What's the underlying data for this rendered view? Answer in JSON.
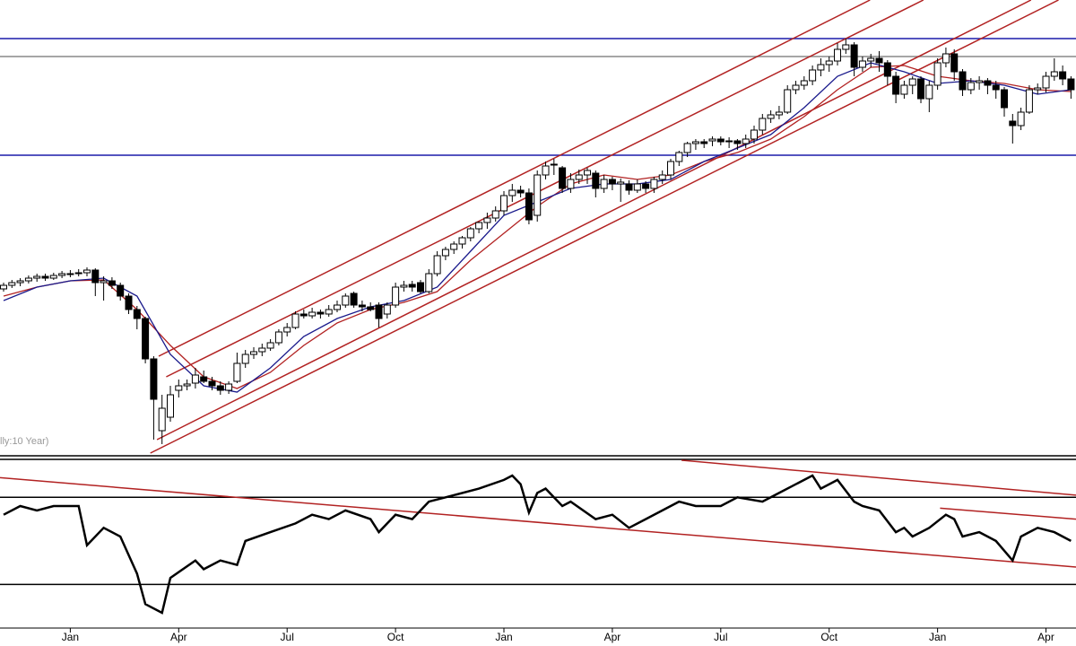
{
  "chart_data": [
    {
      "type": "candlestick",
      "annotation": "lly:10 Year)",
      "xlim": [
        -0.43,
        128.6
      ],
      "ylim": [
        0,
        505
      ],
      "up_color": "#ffffff",
      "down_color": "#000000",
      "trend_color": "#b22222",
      "ohlc": [
        [
          183,
          190,
          180,
          187
        ],
        [
          187,
          193,
          184,
          190
        ],
        [
          190,
          195,
          186,
          192
        ],
        [
          192,
          198,
          189,
          195
        ],
        [
          195,
          200,
          191,
          197
        ],
        [
          197,
          200,
          192,
          195
        ],
        [
          195,
          201,
          193,
          198
        ],
        [
          198,
          203,
          195,
          200
        ],
        [
          200,
          204,
          196,
          200
        ],
        [
          200,
          205,
          197,
          201
        ],
        [
          201,
          207,
          197,
          204
        ],
        [
          204,
          206,
          175,
          190
        ],
        [
          190,
          197,
          170,
          192
        ],
        [
          192,
          196,
          183,
          187
        ],
        [
          187,
          190,
          170,
          175
        ],
        [
          175,
          178,
          155,
          160
        ],
        [
          160,
          164,
          138,
          150
        ],
        [
          150,
          152,
          100,
          105
        ],
        [
          105,
          108,
          15,
          60
        ],
        [
          25,
          65,
          10,
          50
        ],
        [
          40,
          75,
          35,
          65
        ],
        [
          70,
          82,
          62,
          75
        ],
        [
          75,
          82,
          70,
          77
        ],
        [
          78,
          95,
          72,
          87
        ],
        [
          85,
          92,
          78,
          80
        ],
        [
          80,
          85,
          70,
          75
        ],
        [
          75,
          80,
          65,
          70
        ],
        [
          70,
          80,
          66,
          77
        ],
        [
          80,
          112,
          78,
          100
        ],
        [
          100,
          115,
          95,
          110
        ],
        [
          110,
          118,
          105,
          113
        ],
        [
          113,
          122,
          108,
          117
        ],
        [
          117,
          127,
          114,
          123
        ],
        [
          123,
          138,
          120,
          135
        ],
        [
          135,
          145,
          130,
          140
        ],
        [
          140,
          158,
          138,
          155
        ],
        [
          155,
          160,
          150,
          153
        ],
        [
          153,
          162,
          150,
          157
        ],
        [
          157,
          160,
          150,
          155
        ],
        [
          155,
          165,
          152,
          160
        ],
        [
          160,
          170,
          157,
          165
        ],
        [
          165,
          178,
          162,
          175
        ],
        [
          178,
          180,
          162,
          165
        ],
        [
          165,
          170,
          158,
          163
        ],
        [
          163,
          168,
          158,
          160
        ],
        [
          165,
          168,
          140,
          150
        ],
        [
          155,
          168,
          150,
          165
        ],
        [
          165,
          190,
          162,
          185
        ],
        [
          185,
          192,
          180,
          187
        ],
        [
          188,
          192,
          180,
          185
        ],
        [
          190,
          193,
          178,
          180
        ],
        [
          180,
          205,
          178,
          200
        ],
        [
          200,
          225,
          197,
          220
        ],
        [
          220,
          230,
          215,
          227
        ],
        [
          227,
          236,
          222,
          233
        ],
        [
          233,
          242,
          228,
          240
        ],
        [
          240,
          252,
          236,
          250
        ],
        [
          250,
          258,
          245,
          257
        ],
        [
          257,
          268,
          250,
          262
        ],
        [
          262,
          275,
          258,
          270
        ],
        [
          270,
          292,
          265,
          287
        ],
        [
          287,
          300,
          280,
          293
        ],
        [
          293,
          298,
          285,
          290
        ],
        [
          290,
          295,
          255,
          260
        ],
        [
          265,
          315,
          258,
          310
        ],
        [
          310,
          325,
          305,
          320
        ],
        [
          322,
          328,
          310,
          322
        ],
        [
          318,
          320,
          290,
          295
        ],
        [
          295,
          312,
          290,
          305
        ],
        [
          305,
          316,
          300,
          310
        ],
        [
          310,
          318,
          300,
          315
        ],
        [
          312,
          315,
          285,
          295
        ],
        [
          295,
          310,
          290,
          305
        ],
        [
          305,
          308,
          293,
          300
        ],
        [
          300,
          306,
          280,
          302
        ],
        [
          300,
          304,
          288,
          293
        ],
        [
          293,
          305,
          290,
          300
        ],
        [
          300,
          303,
          290,
          295
        ],
        [
          295,
          308,
          290,
          305
        ],
        [
          305,
          315,
          300,
          310
        ],
        [
          310,
          328,
          305,
          325
        ],
        [
          325,
          337,
          320,
          335
        ],
        [
          335,
          347,
          330,
          345
        ],
        [
          345,
          350,
          338,
          347
        ],
        [
          347,
          350,
          340,
          345
        ],
        [
          348,
          353,
          342,
          350
        ],
        [
          350,
          353,
          343,
          347
        ],
        [
          347,
          352,
          340,
          348
        ],
        [
          348,
          350,
          338,
          345
        ],
        [
          345,
          355,
          340,
          350
        ],
        [
          350,
          365,
          345,
          360
        ],
        [
          360,
          378,
          355,
          373
        ],
        [
          373,
          382,
          368,
          377
        ],
        [
          377,
          387,
          372,
          380
        ],
        [
          380,
          410,
          378,
          405
        ],
        [
          405,
          415,
          400,
          410
        ],
        [
          410,
          420,
          405,
          415
        ],
        [
          415,
          432,
          410,
          427
        ],
        [
          427,
          440,
          420,
          433
        ],
        [
          433,
          442,
          425,
          437
        ],
        [
          437,
          457,
          432,
          450
        ],
        [
          450,
          462,
          445,
          455
        ],
        [
          455,
          458,
          420,
          430
        ],
        [
          430,
          442,
          425,
          437
        ],
        [
          437,
          445,
          430,
          440
        ],
        [
          440,
          448,
          425,
          435
        ],
        [
          435,
          438,
          410,
          420
        ],
        [
          420,
          425,
          390,
          400
        ],
        [
          400,
          415,
          395,
          410
        ],
        [
          410,
          420,
          400,
          417
        ],
        [
          417,
          420,
          390,
          395
        ],
        [
          395,
          415,
          380,
          410
        ],
        [
          410,
          440,
          405,
          435
        ],
        [
          435,
          452,
          430,
          445
        ],
        [
          445,
          450,
          415,
          425
        ],
        [
          425,
          428,
          398,
          405
        ],
        [
          405,
          418,
          400,
          413
        ],
        [
          413,
          420,
          405,
          415
        ],
        [
          415,
          418,
          400,
          410
        ],
        [
          410,
          415,
          395,
          405
        ],
        [
          405,
          408,
          375,
          385
        ],
        [
          370,
          378,
          345,
          365
        ],
        [
          365,
          385,
          360,
          380
        ],
        [
          380,
          410,
          378,
          405
        ],
        [
          405,
          412,
          400,
          407
        ],
        [
          407,
          425,
          402,
          420
        ],
        [
          420,
          440,
          415,
          425
        ],
        [
          425,
          432,
          410,
          417
        ],
        [
          417,
          420,
          395,
          405
        ]
      ],
      "series": [
        {
          "color": "#b22222",
          "x": [
            0,
            4,
            8,
            12,
            16,
            20,
            24,
            28,
            32,
            36,
            40,
            44,
            48,
            52,
            56,
            60,
            64,
            68,
            72,
            76,
            80,
            84,
            88,
            92,
            96,
            100,
            104,
            108,
            112,
            116,
            120,
            124,
            128
          ],
          "values": [
            175,
            185,
            192,
            193,
            160,
            120,
            85,
            72,
            90,
            120,
            145,
            160,
            168,
            180,
            215,
            245,
            275,
            300,
            310,
            305,
            310,
            325,
            335,
            350,
            375,
            405,
            430,
            432,
            420,
            415,
            412,
            405,
            403
          ]
        },
        {
          "color": "#1a1a8c",
          "x": [
            0,
            4,
            8,
            12,
            16,
            20,
            24,
            28,
            32,
            36,
            40,
            44,
            48,
            52,
            56,
            60,
            64,
            68,
            72,
            76,
            80,
            84,
            88,
            92,
            96,
            100,
            104,
            108,
            112,
            116,
            120,
            124,
            128
          ],
          "values": [
            170,
            185,
            192,
            195,
            175,
            110,
            75,
            68,
            95,
            130,
            150,
            163,
            170,
            185,
            225,
            265,
            280,
            295,
            300,
            300,
            305,
            325,
            340,
            355,
            385,
            420,
            435,
            425,
            412,
            415,
            410,
            400,
            405
          ]
        }
      ],
      "hlines": [
        {
          "value": 462,
          "color": "#1c1caa"
        },
        {
          "value": 442,
          "color": "#888888"
        },
        {
          "value": 332,
          "color": "#1c1caa"
        }
      ],
      "trendlines": [
        {
          "x": [
            18.6,
            103.9
          ],
          "values": [
            108,
            505
          ]
        },
        {
          "x": [
            19.5,
            110.3
          ],
          "values": [
            85,
            505
          ]
        },
        {
          "x": [
            18.4,
            123.2
          ],
          "values": [
            15,
            505
          ]
        },
        {
          "x": [
            17.6,
            126.5
          ],
          "values": [
            0,
            505
          ]
        }
      ]
    },
    {
      "type": "line",
      "xlim": [
        -0.43,
        128.6
      ],
      "ylim": [
        10,
        87
      ],
      "color": "#000000",
      "trend_color": "#b22222",
      "x": [
        0,
        2,
        4,
        6,
        9,
        10,
        12,
        14,
        16,
        17,
        19,
        20,
        23,
        24,
        26,
        28,
        29,
        32,
        35,
        37,
        39,
        41,
        44,
        45,
        47,
        49,
        51,
        53,
        57,
        60,
        61,
        62,
        63,
        64,
        65,
        67,
        68,
        71,
        73,
        75,
        77,
        79,
        81,
        83,
        86,
        88,
        91,
        93,
        95,
        97,
        98,
        100,
        102,
        103,
        105,
        107,
        108,
        109,
        111,
        113,
        114,
        115,
        117,
        119,
        121,
        122,
        124,
        126,
        128
      ],
      "values": [
        62,
        66,
        64,
        66,
        66,
        48,
        56,
        52,
        35,
        21,
        17,
        33,
        41,
        37,
        41,
        39,
        50,
        54,
        58,
        62,
        60,
        64,
        60,
        54,
        62,
        60,
        68,
        70,
        74,
        78,
        80,
        76,
        63,
        72,
        74,
        66,
        68,
        60,
        62,
        56,
        60,
        64,
        68,
        66,
        66,
        70,
        68,
        72,
        76,
        80,
        74,
        78,
        68,
        66,
        64,
        54,
        56,
        52,
        56,
        62,
        60,
        52,
        54,
        50,
        41,
        52,
        56,
        54,
        50
      ],
      "hlines": [
        {
          "value": 70,
          "color": "#000000"
        },
        {
          "value": 30,
          "color": "#000000"
        }
      ],
      "trendlines": [
        {
          "x": [
            -0.43,
            128.6
          ],
          "values": [
            79,
            38
          ]
        },
        {
          "x": [
            81.3,
            128.6
          ],
          "values": [
            87,
            71
          ]
        },
        {
          "x": [
            112.3,
            128.6
          ],
          "values": [
            65,
            60
          ]
        }
      ],
      "xticks": [
        {
          "value": 8,
          "label": "Jan"
        },
        {
          "value": 21,
          "label": "Apr"
        },
        {
          "value": 34,
          "label": "Jul"
        },
        {
          "value": 47,
          "label": "Oct"
        },
        {
          "value": 60,
          "label": "Jan"
        },
        {
          "value": 73,
          "label": "Apr"
        },
        {
          "value": 86,
          "label": "Jul"
        },
        {
          "value": 99,
          "label": "Oct"
        },
        {
          "value": 112,
          "label": "Jan"
        },
        {
          "value": 125,
          "label": "Apr"
        }
      ]
    }
  ]
}
